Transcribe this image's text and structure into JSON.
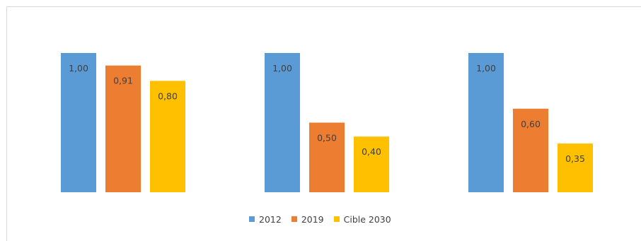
{
  "chart_data": {
    "type": "bar",
    "groups": 3,
    "ylim": [
      0,
      1.0
    ],
    "series": [
      {
        "name": "2012",
        "color": "#5B9BD5",
        "values": [
          1.0,
          1.0,
          1.0
        ],
        "labels": [
          "1,00",
          "1,00",
          "1,00"
        ]
      },
      {
        "name": "2019",
        "color": "#ED7D31",
        "values": [
          0.91,
          0.5,
          0.6
        ],
        "labels": [
          "0,91",
          "0,50",
          "0,60"
        ]
      },
      {
        "name": "Cible 2030",
        "color": "#FFC000",
        "values": [
          0.8,
          0.4,
          0.35
        ],
        "labels": [
          "0,80",
          "0,40",
          "0,35"
        ]
      }
    ],
    "legend_position": "bottom"
  }
}
